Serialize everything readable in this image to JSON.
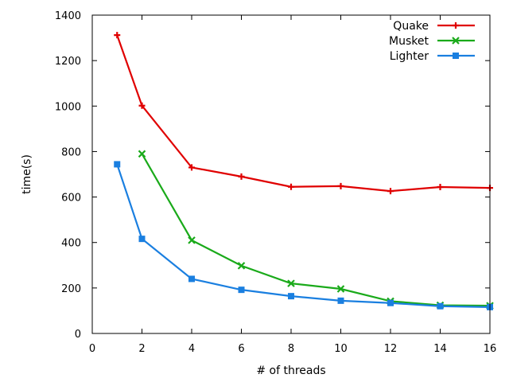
{
  "chart_data": {
    "type": "line",
    "title": "",
    "xlabel": "# of threads",
    "ylabel": "time(s)",
    "xlim": [
      0,
      16
    ],
    "ylim": [
      0,
      1400
    ],
    "xticks": [
      0,
      2,
      4,
      6,
      8,
      10,
      12,
      14,
      16
    ],
    "yticks": [
      0,
      200,
      400,
      600,
      800,
      1000,
      1200,
      1400
    ],
    "grid": false,
    "legend_position": "top-right",
    "series": [
      {
        "name": "Quake",
        "color": "#e00000",
        "marker": "plus",
        "x": [
          1,
          2,
          4,
          6,
          8,
          10,
          12,
          14,
          16
        ],
        "y": [
          1312,
          1002,
          730,
          690,
          645,
          648,
          626,
          644,
          640
        ]
      },
      {
        "name": "Musket",
        "color": "#1aaa1a",
        "marker": "cross",
        "x": [
          2,
          4,
          6,
          8,
          10,
          12,
          14,
          16
        ],
        "y": [
          790,
          410,
          298,
          220,
          196,
          142,
          124,
          122
        ]
      },
      {
        "name": "Lighter",
        "color": "#1a7fe0",
        "marker": "square",
        "x": [
          1,
          2,
          4,
          6,
          8,
          10,
          12,
          14,
          16
        ],
        "y": [
          744,
          416,
          240,
          192,
          164,
          144,
          134,
          120,
          116
        ]
      }
    ]
  }
}
